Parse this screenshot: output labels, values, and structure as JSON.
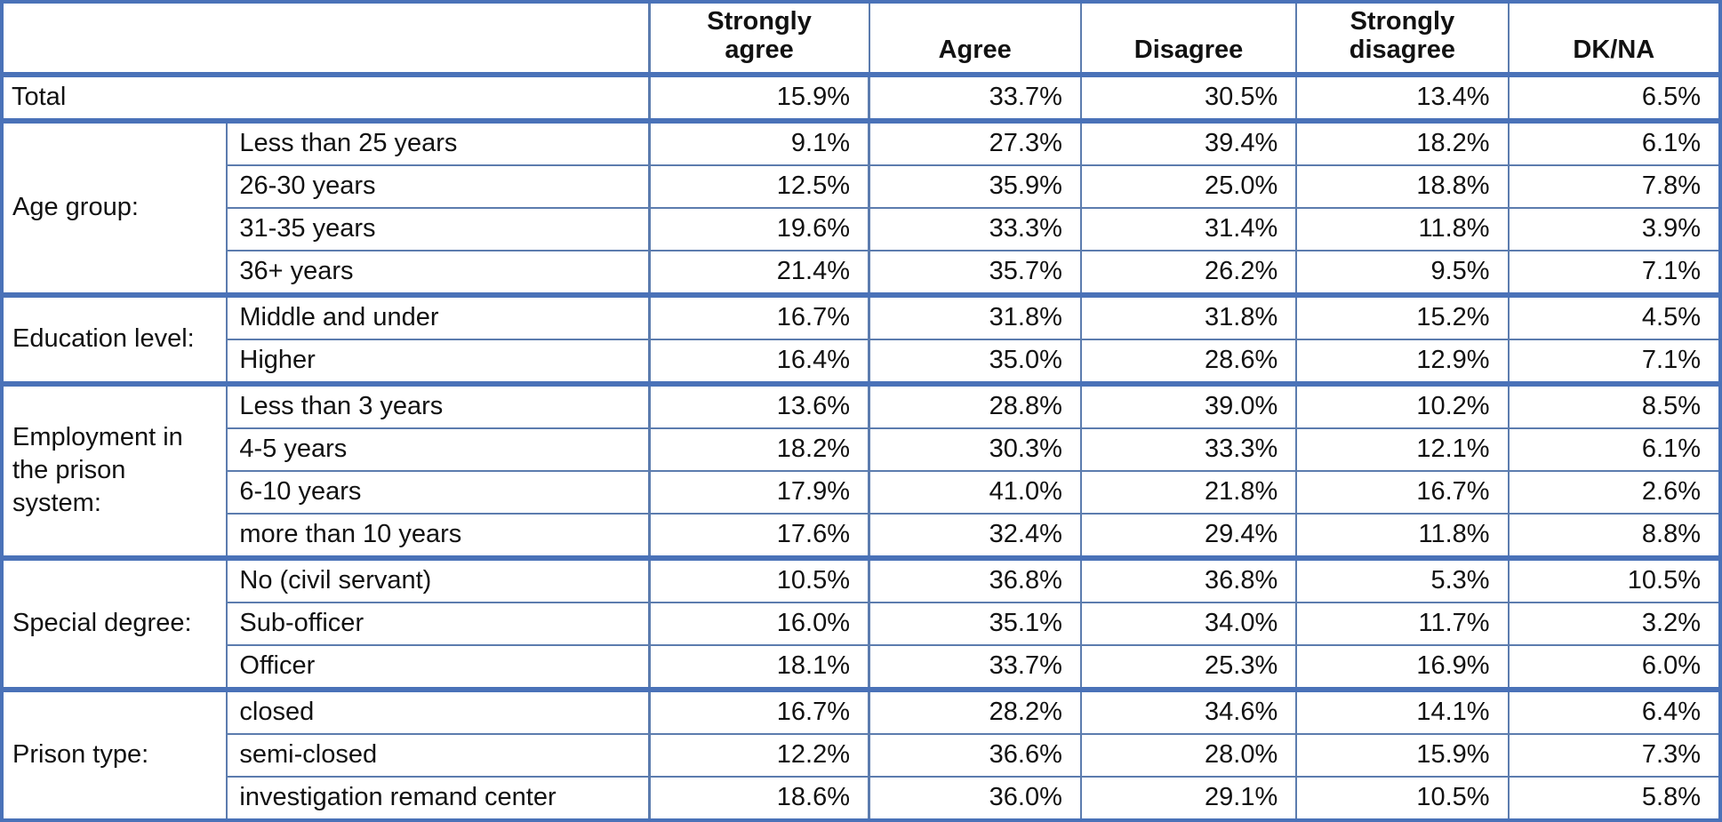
{
  "colors": {
    "border_thick": "#4a72b8",
    "border_thin": "#5c7cae",
    "text": "#121212",
    "background": "#ffffff"
  },
  "chart_data": {
    "type": "table",
    "corner_label": "",
    "columns": [
      "Strongly\nagree",
      "Agree",
      "Disagree",
      "Strongly\ndisagree",
      "DK/NA"
    ],
    "total": {
      "label": "Total",
      "values": [
        "15.9%",
        "33.7%",
        "30.5%",
        "13.4%",
        "6.5%"
      ]
    },
    "groups": [
      {
        "label": "Age group:",
        "rows": [
          {
            "label": "Less than 25 years",
            "values": [
              "9.1%",
              "27.3%",
              "39.4%",
              "18.2%",
              "6.1%"
            ]
          },
          {
            "label": "26-30 years",
            "values": [
              "12.5%",
              "35.9%",
              "25.0%",
              "18.8%",
              "7.8%"
            ]
          },
          {
            "label": "31-35 years",
            "values": [
              "19.6%",
              "33.3%",
              "31.4%",
              "11.8%",
              "3.9%"
            ]
          },
          {
            "label": "36+ years",
            "values": [
              "21.4%",
              "35.7%",
              "26.2%",
              "9.5%",
              "7.1%"
            ]
          }
        ]
      },
      {
        "label": "Education level:",
        "rows": [
          {
            "label": "Middle and under",
            "values": [
              "16.7%",
              "31.8%",
              "31.8%",
              "15.2%",
              "4.5%"
            ]
          },
          {
            "label": "Higher",
            "values": [
              "16.4%",
              "35.0%",
              "28.6%",
              "12.9%",
              "7.1%"
            ]
          }
        ]
      },
      {
        "label": "Employment in the prison system:",
        "rows": [
          {
            "label": "Less than 3 years",
            "values": [
              "13.6%",
              "28.8%",
              "39.0%",
              "10.2%",
              "8.5%"
            ]
          },
          {
            "label": "4-5 years",
            "values": [
              "18.2%",
              "30.3%",
              "33.3%",
              "12.1%",
              "6.1%"
            ]
          },
          {
            "label": "6-10 years",
            "values": [
              "17.9%",
              "41.0%",
              "21.8%",
              "16.7%",
              "2.6%"
            ]
          },
          {
            "label": "more than 10 years",
            "values": [
              "17.6%",
              "32.4%",
              "29.4%",
              "11.8%",
              "8.8%"
            ]
          }
        ]
      },
      {
        "label": "Special degree:",
        "rows": [
          {
            "label": "No (civil servant)",
            "values": [
              "10.5%",
              "36.8%",
              "36.8%",
              "5.3%",
              "10.5%"
            ]
          },
          {
            "label": "Sub-officer",
            "values": [
              "16.0%",
              "35.1%",
              "34.0%",
              "11.7%",
              "3.2%"
            ]
          },
          {
            "label": "Officer",
            "values": [
              "18.1%",
              "33.7%",
              "25.3%",
              "16.9%",
              "6.0%"
            ]
          }
        ]
      },
      {
        "label": "Prison type:",
        "rows": [
          {
            "label": "closed",
            "values": [
              "16.7%",
              "28.2%",
              "34.6%",
              "14.1%",
              "6.4%"
            ]
          },
          {
            "label": "semi-closed",
            "values": [
              "12.2%",
              "36.6%",
              "28.0%",
              "15.9%",
              "7.3%"
            ]
          },
          {
            "label": "investigation remand center",
            "values": [
              "18.6%",
              "36.0%",
              "29.1%",
              "10.5%",
              "5.8%"
            ]
          }
        ]
      }
    ]
  }
}
